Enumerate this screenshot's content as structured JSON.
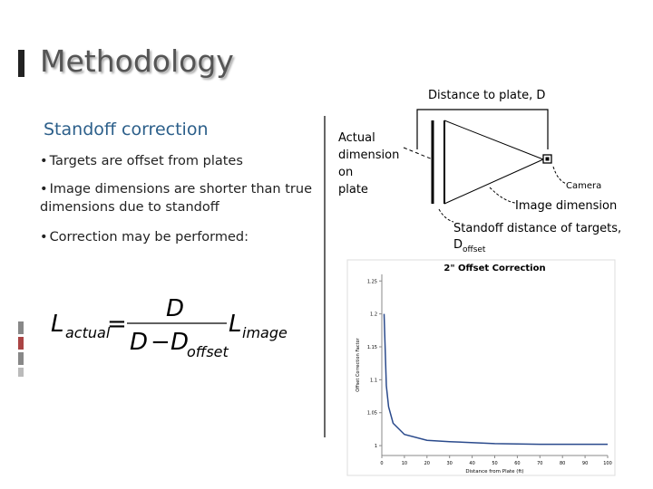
{
  "slide": {
    "title": "Methodology",
    "subtitle": "Standoff correction",
    "bullets": [
      "Targets are offset from plates",
      "Image dimensions are shorter than true dimensions due to standoff",
      "Correction may be performed:"
    ],
    "formula": {
      "lhs": "L",
      "lhs_sub": "actual",
      "equals": "=",
      "numerator": "D",
      "den_left": "D",
      "minus": "−",
      "den_right": "D",
      "den_sub": "offset",
      "rhs": "L",
      "rhs_sub": "image"
    }
  },
  "diagram": {
    "distance_label": "Distance to plate, D",
    "actual_label": [
      "Actual",
      "dimension",
      "on",
      "plate"
    ],
    "camera_label": "Camera",
    "image_label": "Image dimension",
    "standoff_label": "Standoff distance of targets,",
    "standoff_symbol": "D",
    "standoff_sub": "offset"
  },
  "chart_data": {
    "type": "line",
    "title": "2\" Offset Correction",
    "x_label": "Distance from Plate (ft)",
    "y_label": "Offset Correction Factor",
    "x": [
      1,
      2,
      3,
      5,
      10,
      20,
      30,
      50,
      70,
      100
    ],
    "series": [
      {
        "name": "Correction",
        "color": "#2a4a8c",
        "values": [
          1.2,
          1.091,
          1.059,
          1.034,
          1.017,
          1.008,
          1.006,
          1.003,
          1.002,
          1.002
        ]
      }
    ],
    "xlim": [
      0,
      100
    ],
    "xticks": [
      0,
      10,
      20,
      30,
      40,
      50,
      60,
      70,
      80,
      90,
      100
    ],
    "ylim": [
      0.985,
      1.26
    ],
    "yticks": [
      1,
      1.05,
      1.1,
      1.15,
      1.2,
      1.25
    ]
  }
}
